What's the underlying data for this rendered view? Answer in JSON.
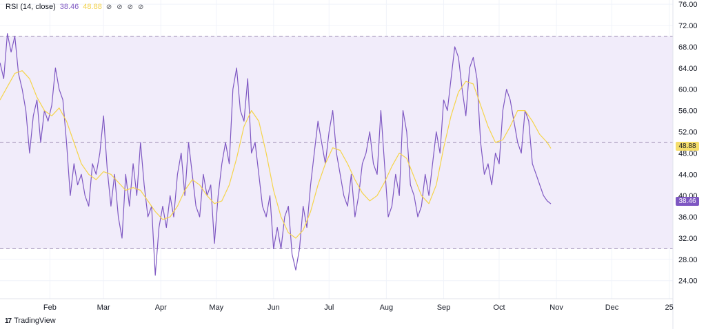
{
  "header": {
    "label": "RSI (14, close)",
    "rsi_value": "38.46",
    "ma_value": "48.88",
    "visibility_icons": [
      "eye-off-icon",
      "eye-off-icon",
      "eye-off-icon",
      "eye-off-icon"
    ]
  },
  "badges": {
    "ma": "48.88",
    "rsi": "38.46"
  },
  "brand": {
    "name": "TradingView"
  },
  "colors": {
    "rsi": "#7e57c2",
    "ma": "#f5d44a",
    "band": "#f1ecfa",
    "guide": "#9a8ab0",
    "grid": "#f0f3fa",
    "axis_text": "#131722"
  },
  "chart_data": {
    "type": "line",
    "y_ticks": [
      "24.00",
      "28.00",
      "32.00",
      "36.00",
      "40.00",
      "44.00",
      "48.00",
      "52.00",
      "56.00",
      "60.00",
      "64.00",
      "68.00",
      "72.00",
      "76.00"
    ],
    "ylim": [
      20.6,
      76.8
    ],
    "x_ticks": [
      {
        "label": "Feb",
        "x": 30
      },
      {
        "label": "Mar",
        "x": 59
      },
      {
        "label": "Apr",
        "x": 90
      },
      {
        "label": "May",
        "x": 120
      },
      {
        "label": "Jun",
        "x": 151
      },
      {
        "label": "Jul",
        "x": 181
      },
      {
        "label": "Aug",
        "x": 212
      },
      {
        "label": "Sep",
        "x": 243
      },
      {
        "label": "Oct",
        "x": 273
      },
      {
        "label": "Nov",
        "x": 304
      },
      {
        "label": "Dec",
        "x": 334
      },
      {
        "label": "25",
        "x": 365
      }
    ],
    "xlim": [
      3,
      367
    ],
    "bands": {
      "upper": 70,
      "middle": 50,
      "lower": 30
    },
    "grid": true,
    "series": [
      {
        "key": "rsi",
        "points": [
          [
            3,
            65.0
          ],
          [
            5,
            62.0
          ],
          [
            7,
            70.5
          ],
          [
            9,
            67.0
          ],
          [
            11,
            70.0
          ],
          [
            13,
            63.0
          ],
          [
            15,
            60.0
          ],
          [
            17,
            56.0
          ],
          [
            19,
            48.0
          ],
          [
            21,
            55.0
          ],
          [
            23,
            58.0
          ],
          [
            25,
            50.0
          ],
          [
            27,
            56.0
          ],
          [
            29,
            54.0
          ],
          [
            31,
            57.0
          ],
          [
            33,
            64.0
          ],
          [
            35,
            60.0
          ],
          [
            37,
            58.0
          ],
          [
            39,
            50.0
          ],
          [
            41,
            40.0
          ],
          [
            43,
            46.0
          ],
          [
            45,
            42.0
          ],
          [
            47,
            44.0
          ],
          [
            49,
            40.0
          ],
          [
            51,
            38.0
          ],
          [
            53,
            46.0
          ],
          [
            55,
            44.0
          ],
          [
            57,
            48.0
          ],
          [
            59,
            55.0
          ],
          [
            61,
            45.0
          ],
          [
            63,
            38.0
          ],
          [
            65,
            44.0
          ],
          [
            67,
            36.0
          ],
          [
            69,
            32.0
          ],
          [
            71,
            44.0
          ],
          [
            73,
            38.0
          ],
          [
            75,
            46.0
          ],
          [
            77,
            40.0
          ],
          [
            79,
            50.0
          ],
          [
            81,
            42.0
          ],
          [
            83,
            36.0
          ],
          [
            85,
            38.0
          ],
          [
            87,
            25.0
          ],
          [
            89,
            34.0
          ],
          [
            91,
            38.0
          ],
          [
            93,
            34.0
          ],
          [
            95,
            40.0
          ],
          [
            97,
            36.0
          ],
          [
            99,
            44.0
          ],
          [
            101,
            48.0
          ],
          [
            103,
            40.0
          ],
          [
            105,
            50.0
          ],
          [
            107,
            44.0
          ],
          [
            109,
            38.0
          ],
          [
            111,
            36.0
          ],
          [
            113,
            44.0
          ],
          [
            115,
            40.0
          ],
          [
            117,
            42.0
          ],
          [
            119,
            31.0
          ],
          [
            121,
            40.0
          ],
          [
            123,
            46.0
          ],
          [
            125,
            50.0
          ],
          [
            127,
            46.0
          ],
          [
            129,
            60.0
          ],
          [
            131,
            64.0
          ],
          [
            133,
            56.0
          ],
          [
            135,
            54.0
          ],
          [
            137,
            62.0
          ],
          [
            139,
            48.0
          ],
          [
            141,
            50.0
          ],
          [
            143,
            44.0
          ],
          [
            145,
            38.0
          ],
          [
            147,
            36.0
          ],
          [
            149,
            40.0
          ],
          [
            151,
            30.0
          ],
          [
            153,
            34.0
          ],
          [
            155,
            30.0
          ],
          [
            157,
            36.0
          ],
          [
            159,
            38.0
          ],
          [
            161,
            29.0
          ],
          [
            163,
            26.0
          ],
          [
            165,
            30.0
          ],
          [
            167,
            38.0
          ],
          [
            169,
            34.0
          ],
          [
            171,
            42.0
          ],
          [
            173,
            48.0
          ],
          [
            175,
            54.0
          ],
          [
            177,
            50.0
          ],
          [
            179,
            46.0
          ],
          [
            181,
            52.0
          ],
          [
            183,
            56.0
          ],
          [
            185,
            48.0
          ],
          [
            187,
            44.0
          ],
          [
            189,
            40.0
          ],
          [
            191,
            38.0
          ],
          [
            193,
            44.0
          ],
          [
            195,
            36.0
          ],
          [
            197,
            40.0
          ],
          [
            199,
            46.0
          ],
          [
            201,
            48.0
          ],
          [
            203,
            52.0
          ],
          [
            205,
            46.0
          ],
          [
            207,
            44.0
          ],
          [
            209,
            56.0
          ],
          [
            211,
            46.0
          ],
          [
            213,
            36.0
          ],
          [
            215,
            38.0
          ],
          [
            217,
            44.0
          ],
          [
            219,
            40.0
          ],
          [
            221,
            56.0
          ],
          [
            223,
            52.0
          ],
          [
            225,
            42.0
          ],
          [
            227,
            40.0
          ],
          [
            229,
            36.0
          ],
          [
            231,
            38.0
          ],
          [
            233,
            44.0
          ],
          [
            235,
            40.0
          ],
          [
            237,
            46.0
          ],
          [
            239,
            52.0
          ],
          [
            241,
            48.0
          ],
          [
            243,
            58.0
          ],
          [
            245,
            56.0
          ],
          [
            247,
            62.0
          ],
          [
            249,
            68.0
          ],
          [
            251,
            66.0
          ],
          [
            253,
            60.0
          ],
          [
            255,
            55.0
          ],
          [
            257,
            64.0
          ],
          [
            259,
            66.0
          ],
          [
            261,
            62.0
          ],
          [
            263,
            50.0
          ],
          [
            265,
            44.0
          ],
          [
            267,
            46.0
          ],
          [
            269,
            42.0
          ],
          [
            271,
            48.0
          ],
          [
            273,
            46.0
          ],
          [
            275,
            56.0
          ],
          [
            277,
            60.0
          ],
          [
            279,
            58.0
          ],
          [
            281,
            54.0
          ],
          [
            283,
            50.0
          ],
          [
            285,
            48.0
          ],
          [
            287,
            56.0
          ],
          [
            289,
            54.0
          ],
          [
            291,
            46.0
          ],
          [
            293,
            44.0
          ],
          [
            295,
            42.0
          ],
          [
            297,
            40.0
          ],
          [
            299,
            39.0
          ],
          [
            301,
            38.46
          ]
        ]
      },
      {
        "key": "ma",
        "points": [
          [
            3,
            58.0
          ],
          [
            7,
            60.5
          ],
          [
            11,
            63.0
          ],
          [
            15,
            63.5
          ],
          [
            19,
            62.0
          ],
          [
            23,
            58.5
          ],
          [
            27,
            56.0
          ],
          [
            31,
            55.0
          ],
          [
            35,
            56.5
          ],
          [
            39,
            54.0
          ],
          [
            43,
            50.0
          ],
          [
            47,
            46.0
          ],
          [
            51,
            44.0
          ],
          [
            55,
            43.0
          ],
          [
            59,
            44.5
          ],
          [
            63,
            44.0
          ],
          [
            67,
            42.5
          ],
          [
            71,
            41.0
          ],
          [
            75,
            41.5
          ],
          [
            79,
            41.0
          ],
          [
            83,
            39.0
          ],
          [
            87,
            37.0
          ],
          [
            91,
            35.5
          ],
          [
            95,
            36.0
          ],
          [
            99,
            38.0
          ],
          [
            103,
            41.0
          ],
          [
            107,
            43.0
          ],
          [
            111,
            42.0
          ],
          [
            115,
            40.0
          ],
          [
            119,
            38.5
          ],
          [
            123,
            39.0
          ],
          [
            127,
            42.0
          ],
          [
            131,
            47.0
          ],
          [
            135,
            53.0
          ],
          [
            139,
            56.0
          ],
          [
            143,
            54.0
          ],
          [
            147,
            48.0
          ],
          [
            151,
            41.0
          ],
          [
            155,
            36.0
          ],
          [
            159,
            33.0
          ],
          [
            163,
            32.0
          ],
          [
            167,
            33.5
          ],
          [
            171,
            37.0
          ],
          [
            175,
            42.0
          ],
          [
            179,
            46.0
          ],
          [
            183,
            49.0
          ],
          [
            187,
            48.5
          ],
          [
            191,
            46.0
          ],
          [
            195,
            43.0
          ],
          [
            199,
            40.5
          ],
          [
            203,
            39.0
          ],
          [
            207,
            40.0
          ],
          [
            211,
            42.5
          ],
          [
            215,
            45.5
          ],
          [
            219,
            48.0
          ],
          [
            223,
            47.0
          ],
          [
            227,
            43.5
          ],
          [
            231,
            40.0
          ],
          [
            235,
            38.5
          ],
          [
            239,
            42.0
          ],
          [
            243,
            49.0
          ],
          [
            247,
            55.0
          ],
          [
            251,
            59.5
          ],
          [
            255,
            61.5
          ],
          [
            259,
            61.0
          ],
          [
            263,
            57.0
          ],
          [
            267,
            53.0
          ],
          [
            271,
            50.0
          ],
          [
            275,
            50.5
          ],
          [
            279,
            53.0
          ],
          [
            283,
            56.0
          ],
          [
            287,
            56.0
          ],
          [
            291,
            54.0
          ],
          [
            295,
            51.5
          ],
          [
            299,
            50.0
          ],
          [
            301,
            48.88
          ]
        ]
      }
    ]
  }
}
